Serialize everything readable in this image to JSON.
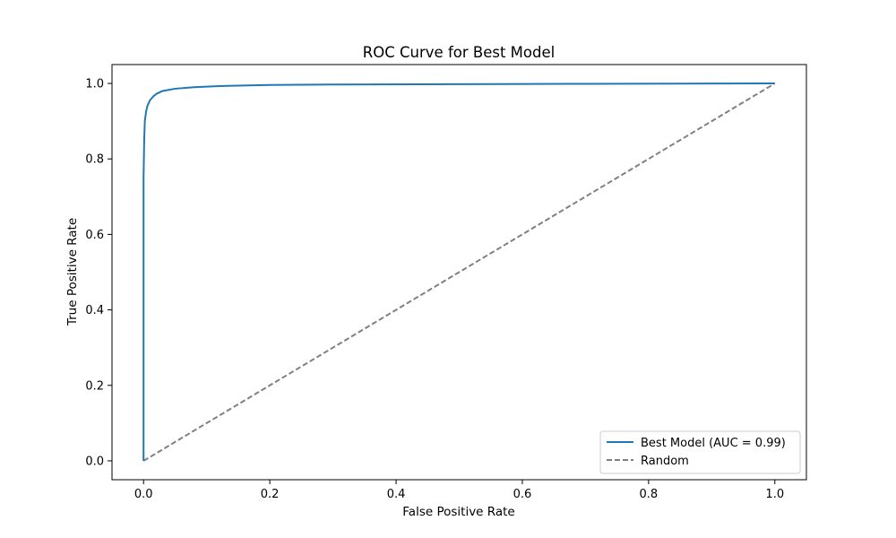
{
  "chart_data": {
    "type": "line",
    "title": "ROC Curve for Best Model",
    "xlabel": "False Positive Rate",
    "ylabel": "True Positive Rate",
    "xlim": [
      -0.05,
      1.05
    ],
    "ylim": [
      -0.05,
      1.05
    ],
    "xticks": [
      0.0,
      0.2,
      0.4,
      0.6,
      0.8,
      1.0
    ],
    "yticks": [
      0.0,
      0.2,
      0.4,
      0.6,
      0.8,
      1.0
    ],
    "xtick_labels": [
      "0.0",
      "0.2",
      "0.4",
      "0.6",
      "0.8",
      "1.0"
    ],
    "ytick_labels": [
      "0.0",
      "0.2",
      "0.4",
      "0.6",
      "0.8",
      "1.0"
    ],
    "grid": false,
    "legend_position": "lower-right",
    "series": [
      {
        "name": "Best Model (AUC = 0.99)",
        "color": "#1f77b4",
        "line_style": "solid",
        "x": [
          0.0,
          0.0,
          0.001,
          0.002,
          0.004,
          0.006,
          0.01,
          0.015,
          0.02,
          0.03,
          0.05,
          0.08,
          0.12,
          0.2,
          0.3,
          0.5,
          0.7,
          1.0
        ],
        "y": [
          0.0,
          0.75,
          0.85,
          0.9,
          0.925,
          0.94,
          0.955,
          0.965,
          0.972,
          0.98,
          0.986,
          0.99,
          0.993,
          0.996,
          0.997,
          0.998,
          0.999,
          1.0
        ]
      },
      {
        "name": "Random",
        "color": "#808080",
        "line_style": "dashed",
        "x": [
          0.0,
          1.0
        ],
        "y": [
          0.0,
          1.0
        ]
      }
    ]
  }
}
